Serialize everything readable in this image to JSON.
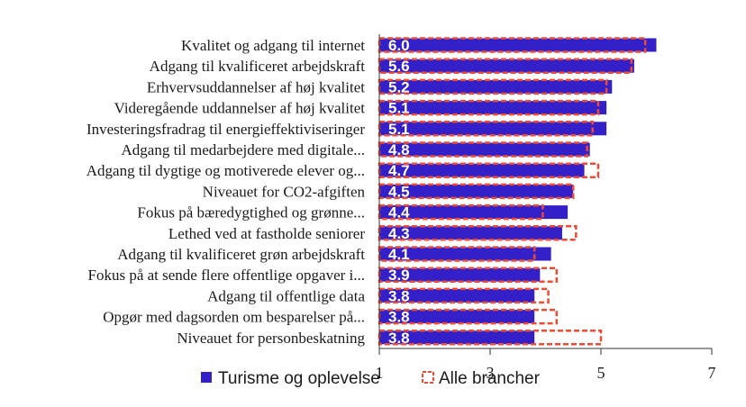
{
  "chart_data": {
    "type": "bar",
    "orientation": "horizontal",
    "categories": [
      "Kvalitet og adgang til internet",
      "Adgang til kvalificeret arbejdskraft",
      "Erhvervsuddannelser af høj kvalitet",
      "Videregående uddannelser af høj kvalitet",
      "Investeringsfradrag til energieffektiviseringer",
      "Adgang til medarbejdere med digitale...",
      "Adgang til dygtige og motiverede elever og...",
      "Niveauet for CO2-afgiften",
      "Fokus på bæredygtighed og grønne...",
      "Lethed ved at fastholde seniorer",
      "Adgang til kvalificeret grøn arbejdskraft",
      "Fokus på at sende flere offentlige opgaver i...",
      "Adgang til offentlige data",
      "Opgør med dagsorden om besparelser på...",
      "Niveauet for personbeskatning"
    ],
    "series": [
      {
        "name": "Turisme og oplevelse",
        "color": "#3320c8",
        "values": [
          6.0,
          5.6,
          5.2,
          5.1,
          5.1,
          4.8,
          4.7,
          4.5,
          4.4,
          4.3,
          4.1,
          3.9,
          3.8,
          3.8,
          3.8
        ],
        "labels": [
          "6.0",
          "5.6",
          "5.2",
          "5.1",
          "5.1",
          "4.8",
          "4.7",
          "4.5",
          "4.4",
          "4.3",
          "4.1",
          "3.9",
          "3.8",
          "3.8",
          "3.8"
        ]
      },
      {
        "name": "Alle brancher",
        "color": "#f04a32",
        "style": "dashed-outline",
        "values": [
          5.8,
          5.55,
          5.1,
          4.95,
          4.85,
          4.75,
          4.95,
          4.5,
          3.95,
          4.55,
          3.8,
          4.2,
          4.05,
          4.2,
          5.0
        ]
      }
    ],
    "xlim": [
      1,
      7
    ],
    "xticks": [
      "1",
      "3",
      "5",
      "7"
    ],
    "legend_position": "bottom",
    "grid": false
  }
}
